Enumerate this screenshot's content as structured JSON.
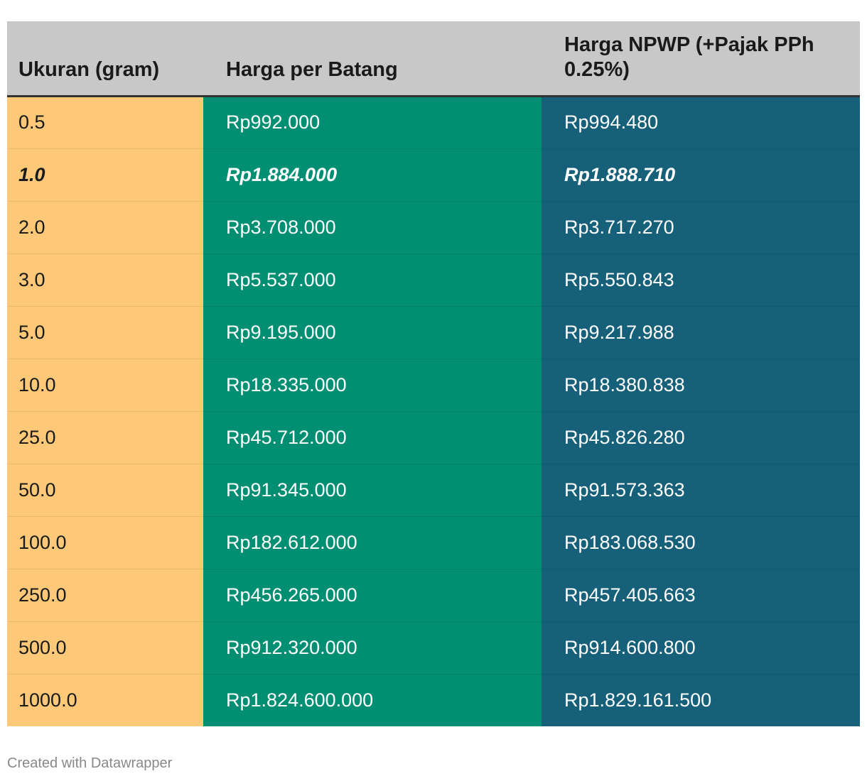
{
  "chart_data": {
    "type": "table",
    "columns": [
      "Ukuran (gram)",
      "Harga per Batang",
      "Harga NPWP (+Pajak PPh 0.25%)"
    ],
    "rows": [
      {
        "size": "0.5",
        "price": "Rp992.000",
        "npwp": "Rp994.480",
        "highlight": false
      },
      {
        "size": "1.0",
        "price": "Rp1.884.000",
        "npwp": "Rp1.888.710",
        "highlight": true
      },
      {
        "size": "2.0",
        "price": "Rp3.708.000",
        "npwp": "Rp3.717.270",
        "highlight": false
      },
      {
        "size": "3.0",
        "price": "Rp5.537.000",
        "npwp": "Rp5.550.843",
        "highlight": false
      },
      {
        "size": "5.0",
        "price": "Rp9.195.000",
        "npwp": "Rp9.217.988",
        "highlight": false
      },
      {
        "size": "10.0",
        "price": "Rp18.335.000",
        "npwp": "Rp18.380.838",
        "highlight": false
      },
      {
        "size": "25.0",
        "price": "Rp45.712.000",
        "npwp": "Rp45.826.280",
        "highlight": false
      },
      {
        "size": "50.0",
        "price": "Rp91.345.000",
        "npwp": "Rp91.573.363",
        "highlight": false
      },
      {
        "size": "100.0",
        "price": "Rp182.612.000",
        "npwp": "Rp183.068.530",
        "highlight": false
      },
      {
        "size": "250.0",
        "price": "Rp456.265.000",
        "npwp": "Rp457.405.663",
        "highlight": false
      },
      {
        "size": "500.0",
        "price": "Rp912.320.000",
        "npwp": "Rp914.600.800",
        "highlight": false
      },
      {
        "size": "1000.0",
        "price": "Rp1.824.600.000",
        "npwp": "Rp1.829.161.500",
        "highlight": false
      }
    ],
    "colors": {
      "header_bg": "#c8c8c8",
      "size_col": "#fdc978",
      "price_col": "#008f72",
      "npwp_col": "#166079"
    }
  },
  "footer": "Created with Datawrapper"
}
